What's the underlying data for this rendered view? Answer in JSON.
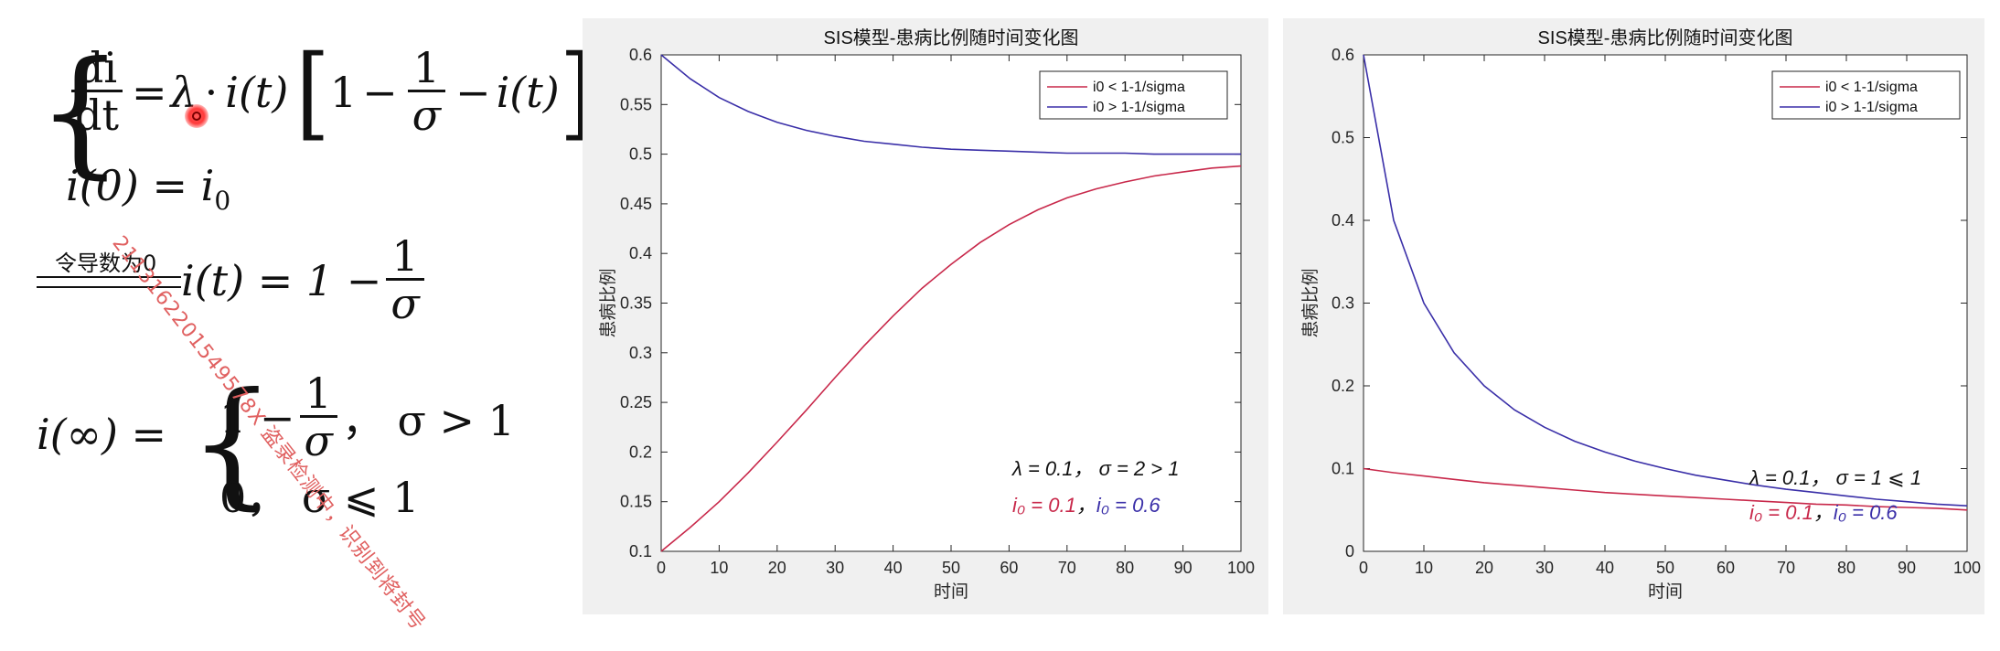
{
  "math": {
    "eq1_lhs_num": "di",
    "eq1_lhs_den": "dt",
    "eq1_eq": "=",
    "eq1_lambda": "λ",
    "eq1_dot": "·",
    "eq1_it": "i(t)",
    "eq1_one": "1",
    "eq1_minus1": "−",
    "eq1_frac_num": "1",
    "eq1_frac_den": "σ",
    "eq1_minus2": "−",
    "eq1_it2": "i(t)",
    "eq2": "i(0) = i",
    "eq2_sub": "0",
    "arrow_label": "令导数为0",
    "eq3_lhs": "i(t) = 1 −",
    "eq3_frac_num": "1",
    "eq3_frac_den": "σ",
    "eq4_lhs": "i(∞) =",
    "eq4_case1_a": "1 −",
    "eq4_case1_num": "1",
    "eq4_case1_den": "σ",
    "eq4_case1_cond": "，  σ > 1",
    "eq4_case2": "0，  σ ⩽ 1"
  },
  "watermark": "2113162201549578X 盗录检测中，识别到将封号",
  "colors": {
    "red_series": "#c8284a",
    "blue_series": "#3a2fa8",
    "axis": "#262626",
    "figure_bg": "#f0f0f0"
  },
  "chart_data": [
    {
      "type": "line",
      "title": "SIS模型-患病比例随时间变化图",
      "xlabel": "时间",
      "ylabel": "患病比例",
      "xlim": [
        0,
        100
      ],
      "ylim": [
        0.1,
        0.6
      ],
      "xticks": [
        0,
        10,
        20,
        30,
        40,
        50,
        60,
        70,
        80,
        90,
        100
      ],
      "yticks": [
        0.1,
        0.15,
        0.2,
        0.25,
        0.3,
        0.35,
        0.4,
        0.45,
        0.5,
        0.55,
        0.6
      ],
      "grid": false,
      "legend_position": "top-right",
      "x": [
        0,
        5,
        10,
        15,
        20,
        25,
        30,
        35,
        40,
        45,
        50,
        55,
        60,
        65,
        70,
        75,
        80,
        85,
        90,
        95,
        100
      ],
      "series": [
        {
          "name": "i0 < 1-1/sigma",
          "color": "#c8284a",
          "values": [
            0.1,
            0.124,
            0.15,
            0.179,
            0.21,
            0.242,
            0.275,
            0.307,
            0.337,
            0.365,
            0.389,
            0.411,
            0.429,
            0.444,
            0.456,
            0.465,
            0.472,
            0.478,
            0.482,
            0.486,
            0.488
          ]
        },
        {
          "name": "i0 > 1-1/sigma",
          "color": "#3a2fa8",
          "values": [
            0.6,
            0.576,
            0.557,
            0.543,
            0.532,
            0.524,
            0.518,
            0.513,
            0.51,
            0.507,
            0.505,
            0.504,
            0.503,
            0.502,
            0.501,
            0.501,
            0.501,
            0.5,
            0.5,
            0.5,
            0.5
          ]
        }
      ],
      "annotations": [
        {
          "text": "λ = 0.1， σ = 2 > 1",
          "color": "#111111"
        },
        {
          "text_parts": [
            "i₀ = 0.1",
            "，",
            "i₀ = 0.6"
          ],
          "colors": [
            "#c8284a",
            "#111111",
            "#3a2fa8"
          ]
        }
      ]
    },
    {
      "type": "line",
      "title": "SIS模型-患病比例随时间变化图",
      "xlabel": "时间",
      "ylabel": "患病比例",
      "xlim": [
        0,
        100
      ],
      "ylim": [
        0,
        0.6
      ],
      "xticks": [
        0,
        10,
        20,
        30,
        40,
        50,
        60,
        70,
        80,
        90,
        100
      ],
      "yticks": [
        0,
        0.1,
        0.2,
        0.3,
        0.4,
        0.5,
        0.6
      ],
      "grid": false,
      "legend_position": "top-right",
      "x": [
        0,
        5,
        10,
        15,
        20,
        25,
        30,
        35,
        40,
        45,
        50,
        55,
        60,
        65,
        70,
        75,
        80,
        85,
        90,
        95,
        100
      ],
      "series": [
        {
          "name": "i0 < 1-1/sigma",
          "color": "#c8284a",
          "values": [
            0.1,
            0.095,
            0.091,
            0.087,
            0.083,
            0.08,
            0.077,
            0.074,
            0.071,
            0.069,
            0.067,
            0.065,
            0.063,
            0.061,
            0.059,
            0.057,
            0.056,
            0.054,
            0.053,
            0.052,
            0.05
          ]
        },
        {
          "name": "i0 > 1-1/sigma",
          "color": "#3a2fa8",
          "values": [
            0.6,
            0.4,
            0.3,
            0.24,
            0.2,
            0.171,
            0.15,
            0.133,
            0.12,
            0.109,
            0.1,
            0.092,
            0.086,
            0.08,
            0.075,
            0.071,
            0.067,
            0.063,
            0.06,
            0.057,
            0.055
          ]
        }
      ],
      "annotations": [
        {
          "text": "λ = 0.1， σ = 1 ⩽ 1",
          "color": "#111111"
        },
        {
          "text_parts": [
            "i₀ = 0.1",
            "，",
            "i₀ = 0.6"
          ],
          "colors": [
            "#c8284a",
            "#111111",
            "#3a2fa8"
          ]
        }
      ]
    }
  ]
}
